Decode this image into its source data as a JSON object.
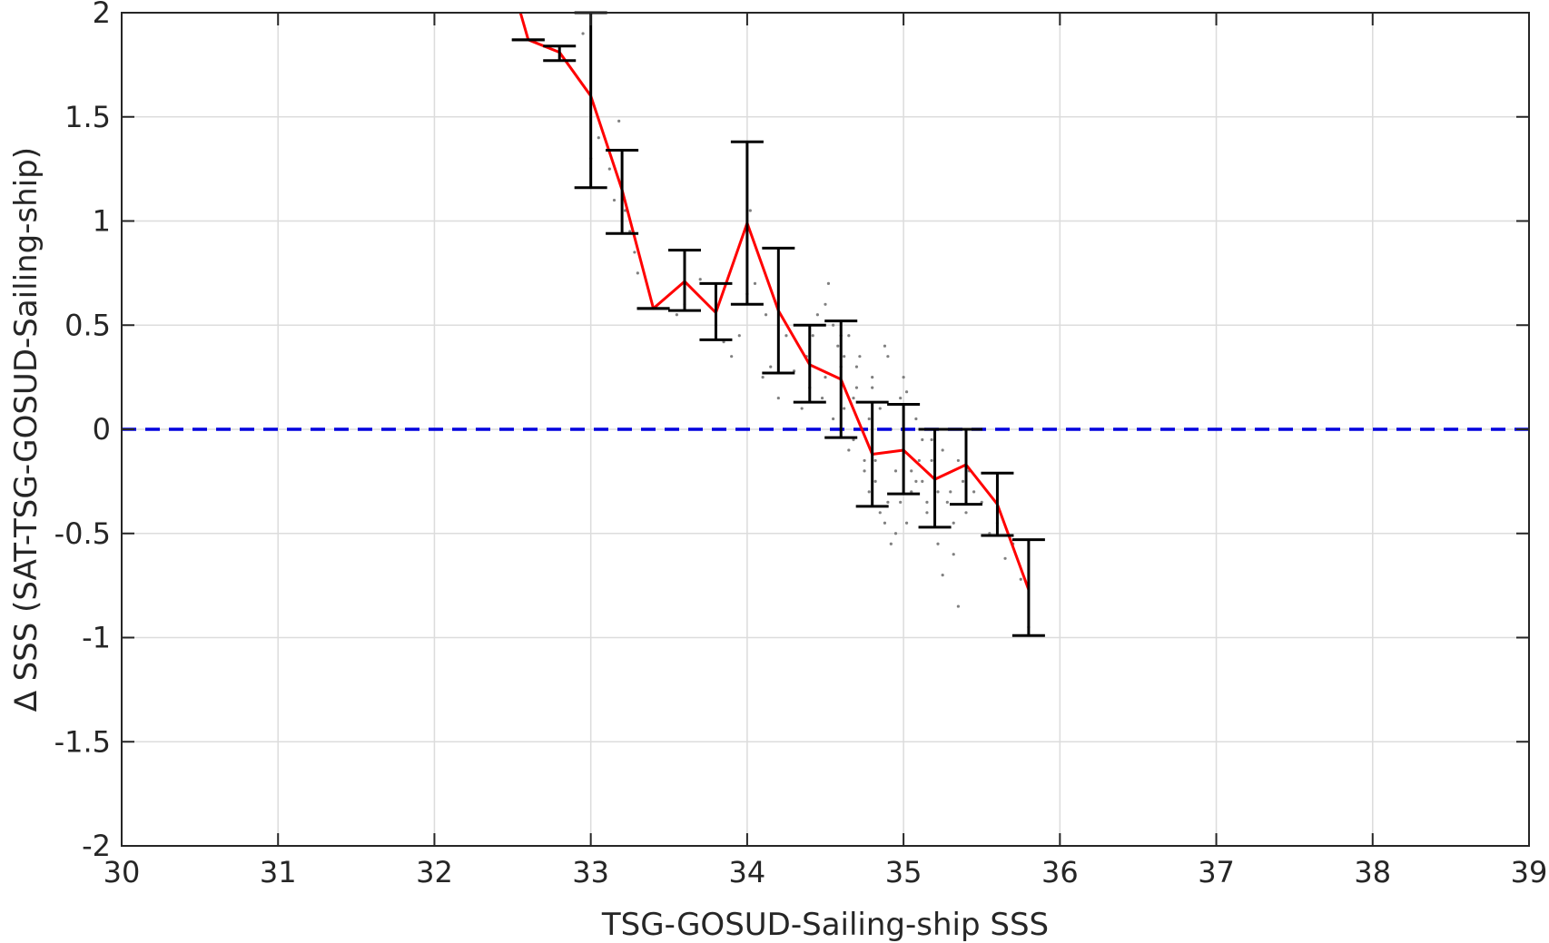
{
  "chart_data": {
    "type": "scatter",
    "title": "",
    "xlabel": "TSG-GOSUD-Sailing-ship SSS",
    "ylabel": "∆ SSS (SAT-TSG-GOSUD-Sailing-ship)",
    "xlim": [
      30,
      39
    ],
    "ylim": [
      -2,
      2
    ],
    "xticks": [
      30,
      31,
      32,
      33,
      34,
      35,
      36,
      37,
      38,
      39
    ],
    "yticks": [
      -2,
      -1.5,
      -1,
      -0.5,
      0,
      0.5,
      1,
      1.5,
      2
    ],
    "xtick_labels": [
      "30",
      "31",
      "32",
      "33",
      "34",
      "35",
      "36",
      "37",
      "38",
      "39"
    ],
    "ytick_labels": [
      "-2",
      "-1.5",
      "-1",
      "-0.5",
      "0",
      "0.5",
      "1",
      "1.5",
      "2"
    ],
    "grid": true,
    "legend": "none",
    "zero_line": {
      "y": 0,
      "style": "dashed",
      "color": "#0000dd"
    },
    "mean_line": {
      "color": "#ff0000",
      "x": [
        32.55,
        32.6,
        32.8,
        33.0,
        33.2,
        33.4,
        33.6,
        33.8,
        34.0,
        34.2,
        34.4,
        34.6,
        34.8,
        35.0,
        35.2,
        35.4,
        35.6,
        35.8
      ],
      "y": [
        2.02,
        1.87,
        1.81,
        1.6,
        1.15,
        0.58,
        0.71,
        0.56,
        0.99,
        0.57,
        0.31,
        0.24,
        -0.12,
        -0.1,
        -0.24,
        -0.17,
        -0.36,
        -0.77
      ]
    },
    "error_bars": {
      "color": "#000000",
      "x": [
        32.6,
        32.8,
        33.0,
        33.2,
        33.4,
        33.6,
        33.8,
        34.0,
        34.2,
        34.4,
        34.6,
        34.8,
        35.0,
        35.2,
        35.4,
        35.6,
        35.8
      ],
      "lower": [
        1.87,
        1.77,
        1.16,
        0.94,
        0.58,
        0.57,
        0.43,
        0.6,
        0.27,
        0.13,
        -0.04,
        -0.37,
        -0.31,
        -0.47,
        -0.36,
        -0.51,
        -0.99
      ],
      "upper": [
        1.87,
        1.84,
        2.0,
        1.34,
        0.58,
        0.86,
        0.7,
        1.38,
        0.87,
        0.5,
        0.52,
        0.13,
        0.12,
        0.0,
        0.0,
        -0.21,
        -0.53
      ]
    },
    "scatter_points": {
      "color": "#808080",
      "x": [
        32.95,
        33.0,
        33.05,
        33.12,
        33.15,
        33.18,
        33.22,
        33.25,
        33.28,
        33.3,
        33.55,
        33.6,
        33.7,
        33.8,
        33.85,
        33.9,
        33.95,
        34.0,
        34.02,
        34.05,
        34.1,
        34.12,
        34.15,
        34.2,
        34.25,
        34.3,
        34.35,
        34.38,
        34.4,
        34.42,
        34.45,
        34.48,
        34.5,
        34.52,
        34.55,
        34.58,
        34.6,
        34.62,
        34.65,
        34.68,
        34.7,
        34.72,
        34.75,
        34.78,
        34.8,
        34.82,
        34.85,
        34.88,
        34.9,
        34.92,
        34.95,
        34.98,
        35.0,
        35.02,
        35.05,
        35.08,
        35.1,
        35.12,
        35.15,
        35.18,
        35.2,
        35.22,
        35.25,
        35.28,
        35.3,
        35.32,
        35.35,
        35.38,
        35.4,
        35.42,
        35.45,
        35.5,
        35.55,
        35.6,
        35.65,
        35.7,
        35.75,
        35.8,
        34.5,
        34.6,
        34.7,
        34.8,
        34.9,
        35.0,
        34.65,
        34.75,
        34.85,
        34.95,
        35.05,
        35.15,
        35.25,
        35.35,
        34.55,
        34.68,
        34.78,
        34.88,
        34.98,
        35.08,
        35.18,
        34.62,
        34.72,
        34.82,
        34.92,
        35.02,
        35.12,
        35.22,
        35.32
      ],
      "y": [
        1.9,
        1.3,
        1.4,
        1.25,
        1.1,
        1.48,
        1.05,
        0.95,
        0.85,
        0.75,
        0.55,
        0.6,
        0.72,
        0.5,
        0.42,
        0.35,
        0.45,
        0.65,
        1.05,
        0.7,
        0.25,
        0.55,
        0.3,
        0.15,
        0.45,
        0.28,
        0.1,
        0.35,
        0.2,
        0.45,
        0.55,
        0.15,
        0.25,
        0.7,
        0.05,
        0.4,
        0.3,
        0.1,
        0.45,
        -0.05,
        0.2,
        0.35,
        -0.15,
        0.05,
        0.25,
        -0.25,
        0.1,
        0.4,
        -0.35,
        0.0,
        -0.2,
        0.15,
        -0.1,
        -0.45,
        -0.3,
        0.05,
        -0.15,
        -0.25,
        -0.4,
        -0.05,
        -0.2,
        -0.55,
        -0.1,
        -0.35,
        -0.3,
        -0.6,
        -0.15,
        -0.25,
        -0.4,
        -0.2,
        -0.3,
        -0.35,
        -0.5,
        -0.45,
        -0.62,
        -0.55,
        -0.72,
        -0.95,
        0.6,
        0.45,
        0.3,
        0.2,
        0.35,
        0.25,
        -0.1,
        -0.2,
        -0.4,
        -0.5,
        -0.2,
        -0.35,
        -0.7,
        -0.85,
        0.5,
        0.15,
        -0.3,
        -0.45,
        -0.35,
        -0.25,
        -0.15,
        0.35,
        0.0,
        -0.15,
        -0.55,
        0.18,
        -0.05,
        -0.3,
        -0.45
      ]
    }
  }
}
